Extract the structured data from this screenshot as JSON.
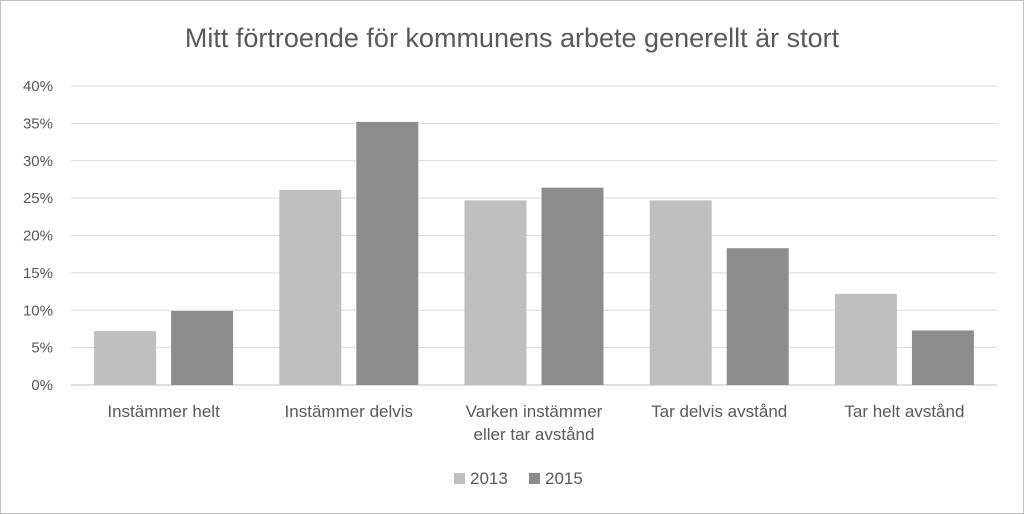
{
  "chart_data": {
    "type": "bar",
    "title": "Mitt förtroende för kommunens arbete generellt är stort",
    "xlabel": "",
    "ylabel": "",
    "categories": [
      [
        "Instämmer helt"
      ],
      [
        "Instämmer delvis"
      ],
      [
        "Varken instämmer",
        "eller tar avstånd"
      ],
      [
        "Tar delvis avstånd"
      ],
      [
        "Tar helt avstånd"
      ]
    ],
    "series": [
      {
        "name": "2013",
        "color": "#bfbfbf",
        "values": [
          7.2,
          26.1,
          24.7,
          24.7,
          12.2
        ]
      },
      {
        "name": "2015",
        "color": "#8c8c8c",
        "values": [
          9.9,
          35.2,
          26.4,
          18.3,
          7.3
        ]
      }
    ],
    "ylim": [
      0,
      40
    ],
    "yticks": [
      "0%",
      "5%",
      "10%",
      "15%",
      "20%",
      "25%",
      "30%",
      "35%",
      "40%"
    ],
    "grid": true,
    "legend_position": "bottom"
  }
}
